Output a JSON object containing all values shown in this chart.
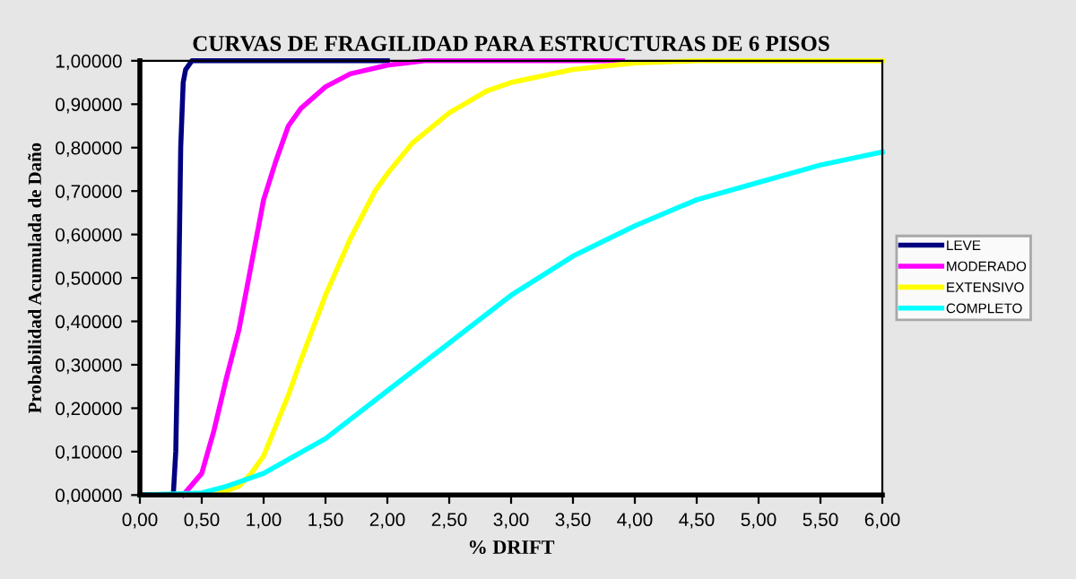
{
  "chart_data": {
    "type": "line",
    "title": "CURVAS DE FRAGILIDAD PARA ESTRUCTURAS DE 6 PISOS",
    "xlabel": "% DRIFT",
    "ylabel": "Probabilidad Acumulada de Daño",
    "xlim": [
      0,
      6
    ],
    "ylim": [
      0,
      1
    ],
    "xticks": [
      {
        "value": 0,
        "label": "0,00"
      },
      {
        "value": 0.5,
        "label": "0,50"
      },
      {
        "value": 1,
        "label": "1,00"
      },
      {
        "value": 1.5,
        "label": "1,50"
      },
      {
        "value": 2,
        "label": "2,00"
      },
      {
        "value": 2.5,
        "label": "2,50"
      },
      {
        "value": 3,
        "label": "3,00"
      },
      {
        "value": 3.5,
        "label": "3,50"
      },
      {
        "value": 4,
        "label": "4,00"
      },
      {
        "value": 4.5,
        "label": "4,50"
      },
      {
        "value": 5,
        "label": "5,00"
      },
      {
        "value": 5.5,
        "label": "5,50"
      },
      {
        "value": 6,
        "label": "6,00"
      }
    ],
    "yticks": [
      {
        "value": 0,
        "label": "0,00000"
      },
      {
        "value": 0.1,
        "label": "0,10000"
      },
      {
        "value": 0.2,
        "label": "0,20000"
      },
      {
        "value": 0.3,
        "label": "0,30000"
      },
      {
        "value": 0.4,
        "label": "0,40000"
      },
      {
        "value": 0.5,
        "label": "0,50000"
      },
      {
        "value": 0.6,
        "label": "0,60000"
      },
      {
        "value": 0.7,
        "label": "0,70000"
      },
      {
        "value": 0.8,
        "label": "0,80000"
      },
      {
        "value": 0.9,
        "label": "0,90000"
      },
      {
        "value": 1,
        "label": "1,00000"
      }
    ],
    "grid": false,
    "legend": "right",
    "marker": "none",
    "line_style": "solid",
    "series": [
      {
        "name": "LEVE",
        "color": "#000080",
        "x": [
          0,
          0.27,
          0.29,
          0.31,
          0.33,
          0.35,
          0.37,
          0.42,
          2.0
        ],
        "values": [
          0,
          0,
          0.1,
          0.4,
          0.8,
          0.95,
          0.98,
          1,
          1
        ]
      },
      {
        "name": "MODERADO",
        "color": "#ff00ff",
        "x": [
          0.35,
          0.5,
          0.6,
          0.7,
          0.8,
          0.9,
          1.0,
          1.1,
          1.2,
          1.3,
          1.5,
          1.7,
          2.0,
          2.3,
          3.9
        ],
        "values": [
          0,
          0.05,
          0.15,
          0.27,
          0.38,
          0.53,
          0.68,
          0.77,
          0.85,
          0.89,
          0.94,
          0.97,
          0.99,
          1,
          1
        ]
      },
      {
        "name": "EXTENSIVO",
        "color": "#ffff00",
        "x": [
          0.6,
          0.8,
          0.9,
          1.0,
          1.1,
          1.2,
          1.3,
          1.5,
          1.7,
          1.9,
          2.0,
          2.2,
          2.5,
          2.8,
          3.0,
          3.5,
          4.0,
          4.5,
          6.0
        ],
        "values": [
          0,
          0.02,
          0.05,
          0.09,
          0.16,
          0.23,
          0.31,
          0.46,
          0.59,
          0.7,
          0.74,
          0.81,
          0.88,
          0.93,
          0.95,
          0.98,
          0.995,
          1,
          1
        ]
      },
      {
        "name": "COMPLETO",
        "color": "#00ffff",
        "x": [
          0,
          0.5,
          0.7,
          1.0,
          1.5,
          2.0,
          2.5,
          3.0,
          3.5,
          4.0,
          4.5,
          5.0,
          5.5,
          6.0
        ],
        "values": [
          0,
          0.005,
          0.02,
          0.05,
          0.13,
          0.24,
          0.35,
          0.46,
          0.55,
          0.62,
          0.68,
          0.72,
          0.76,
          0.79
        ]
      }
    ]
  }
}
